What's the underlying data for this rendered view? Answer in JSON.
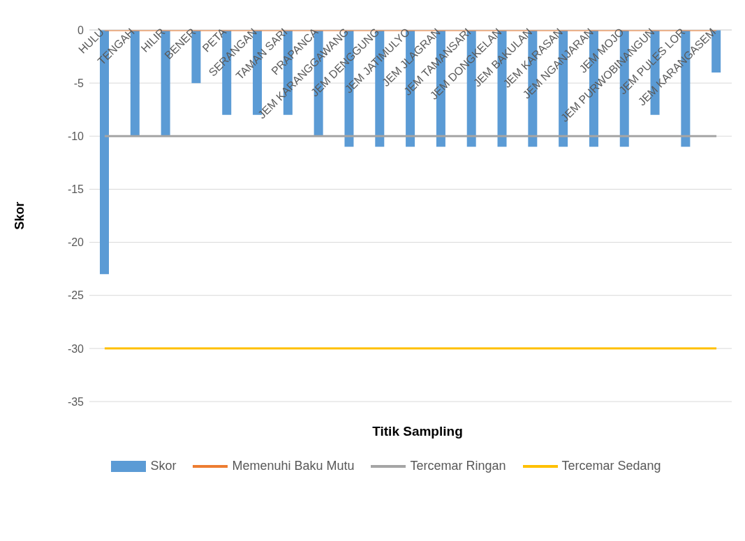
{
  "chart_data": {
    "type": "bar",
    "xlabel": "Titik Sampling",
    "ylabel": "Skor",
    "categories": [
      "HULU",
      "TENGAH",
      "HILIR",
      "BENER",
      "PETA",
      "SERANGAN",
      "TAMAN SARI",
      "PRAPANCA",
      "JEM KARANGGAWANG",
      "JEM DENGGUNG",
      "JEM JATIMULYO",
      "JEM JLAGRAN",
      "JEM TAMANSARI",
      "JEM DONGKELAN",
      "JEM BAKULAN",
      "JEM KARASAN",
      "JEM NGANJARAN",
      "JEM MOJO",
      "JEM PURWOBINANGUN",
      "JEM PULES LOR",
      "JEM KARANGASEM"
    ],
    "series": [
      {
        "name": "Skor",
        "color": "#5b9bd5",
        "values": [
          -23,
          -10,
          -10,
          -5,
          -8,
          -8,
          -8,
          -10,
          -11,
          -11,
          -11,
          -11,
          -11,
          -11,
          -11,
          -11,
          -11,
          -11,
          -8,
          -11,
          -4
        ]
      },
      {
        "name": "Memenuhi Baku Mutu",
        "type": "line",
        "color": "#ed7d31",
        "values": [
          0,
          0,
          0,
          0,
          0,
          0,
          0,
          0,
          0,
          0,
          0,
          0,
          0,
          0,
          0,
          0,
          0,
          0,
          0,
          0,
          0
        ]
      },
      {
        "name": "Tercemar Ringan",
        "type": "line",
        "color": "#a5a5a5",
        "values": [
          -10,
          -10,
          -10,
          -10,
          -10,
          -10,
          -10,
          -10,
          -10,
          -10,
          -10,
          -10,
          -10,
          -10,
          -10,
          -10,
          -10,
          -10,
          -10,
          -10,
          -10
        ]
      },
      {
        "name": "Tercemar Sedang",
        "type": "line",
        "color": "#ffc000",
        "values": [
          -30,
          -30,
          -30,
          -30,
          -30,
          -30,
          -30,
          -30,
          -30,
          -30,
          -30,
          -30,
          -30,
          -30,
          -30,
          -30,
          -30,
          -30,
          -30,
          -30,
          -30
        ]
      }
    ],
    "ylim": [
      -35,
      0
    ],
    "yticks": [
      0,
      -5,
      -10,
      -15,
      -20,
      -25,
      -30,
      -35
    ],
    "grid": "y",
    "legend": "bottom",
    "marker": "none"
  }
}
